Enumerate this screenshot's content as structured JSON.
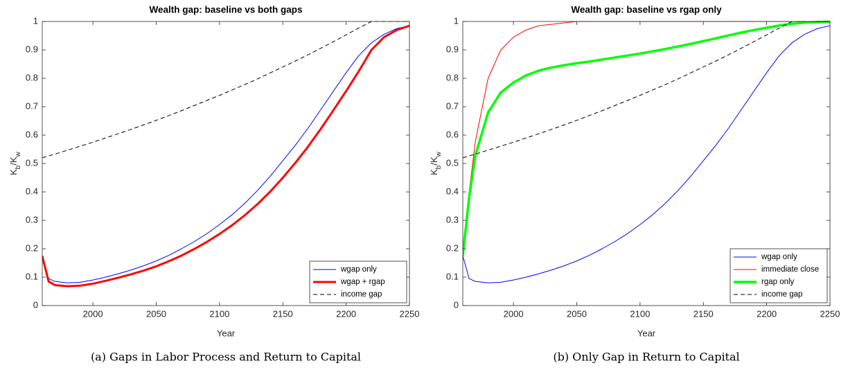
{
  "chart_data": [
    {
      "type": "line",
      "title": "Wealth gap: baseline vs both gaps",
      "xlabel": "Year",
      "ylabel": [
        "K",
        "b",
        "/K",
        "w"
      ],
      "caption": "(a) Gaps in Labor Process and Return to Capital",
      "x": [
        1960,
        1965,
        1970,
        1980,
        1990,
        2000,
        2010,
        2020,
        2030,
        2040,
        2050,
        2060,
        2070,
        2080,
        2090,
        2100,
        2110,
        2120,
        2130,
        2140,
        2150,
        2160,
        2170,
        2180,
        2190,
        2200,
        2210,
        2220,
        2230,
        2240,
        2250
      ],
      "xlim": [
        1960,
        2250
      ],
      "xticks": [
        2000,
        2050,
        2100,
        2150,
        2200,
        2250
      ],
      "ylim": [
        0,
        1
      ],
      "yticks": [
        0,
        0.1,
        0.2,
        0.3,
        0.4,
        0.5,
        0.6,
        0.7,
        0.8,
        0.9,
        1
      ],
      "legend": "bottom-right",
      "series": [
        {
          "name": "wgap only",
          "color": "#0000ff",
          "width": 1,
          "dash": "solid",
          "values": [
            0.175,
            0.095,
            0.085,
            0.08,
            0.082,
            0.09,
            0.1,
            0.112,
            0.125,
            0.14,
            0.157,
            0.177,
            0.2,
            0.225,
            0.253,
            0.285,
            0.32,
            0.36,
            0.405,
            0.455,
            0.51,
            0.565,
            0.625,
            0.69,
            0.755,
            0.82,
            0.88,
            0.925,
            0.955,
            0.975,
            0.985
          ]
        },
        {
          "name": "wgap + rgap",
          "color": "#ff0000",
          "width": 3,
          "dash": "solid",
          "values": [
            0.175,
            0.085,
            0.072,
            0.068,
            0.07,
            0.077,
            0.087,
            0.098,
            0.11,
            0.123,
            0.138,
            0.156,
            0.176,
            0.199,
            0.224,
            0.252,
            0.283,
            0.318,
            0.357,
            0.401,
            0.45,
            0.503,
            0.56,
            0.622,
            0.688,
            0.755,
            0.825,
            0.9,
            0.945,
            0.97,
            0.985
          ]
        },
        {
          "name": "income gap",
          "color": "#000000",
          "width": 1,
          "dash": "dashed",
          "values": [
            0.52,
            0.527,
            0.533,
            0.547,
            0.561,
            0.575,
            0.59,
            0.605,
            0.62,
            0.636,
            0.652,
            0.669,
            0.686,
            0.704,
            0.722,
            0.74,
            0.759,
            0.778,
            0.798,
            0.819,
            0.84,
            0.861,
            0.883,
            0.906,
            0.929,
            0.953,
            0.977,
            1,
            1,
            1,
            1
          ]
        }
      ]
    },
    {
      "type": "line",
      "title": "Wealth gap: baseline vs rgap only",
      "xlabel": "Year",
      "ylabel": [
        "K",
        "b",
        "/K",
        "w"
      ],
      "caption": "(b) Only Gap in Return to Capital",
      "x": [
        1960,
        1965,
        1970,
        1980,
        1990,
        2000,
        2010,
        2020,
        2030,
        2040,
        2050,
        2060,
        2070,
        2080,
        2090,
        2100,
        2110,
        2120,
        2130,
        2140,
        2150,
        2160,
        2170,
        2180,
        2190,
        2200,
        2210,
        2220,
        2230,
        2240,
        2250
      ],
      "xlim": [
        1960,
        2250
      ],
      "xticks": [
        2000,
        2050,
        2100,
        2150,
        2200,
        2250
      ],
      "ylim": [
        0,
        1
      ],
      "yticks": [
        0,
        0.1,
        0.2,
        0.3,
        0.4,
        0.5,
        0.6,
        0.7,
        0.8,
        0.9,
        1
      ],
      "legend": "bottom-right",
      "series": [
        {
          "name": "wgap only",
          "color": "#0000ff",
          "width": 1,
          "dash": "solid",
          "values": [
            0.175,
            0.095,
            0.085,
            0.08,
            0.082,
            0.09,
            0.1,
            0.112,
            0.125,
            0.14,
            0.157,
            0.177,
            0.2,
            0.225,
            0.253,
            0.285,
            0.32,
            0.36,
            0.405,
            0.455,
            0.51,
            0.565,
            0.625,
            0.69,
            0.755,
            0.82,
            0.88,
            0.925,
            0.955,
            0.975,
            0.985
          ]
        },
        {
          "name": "immediate close",
          "color": "#ff0000",
          "width": 1,
          "dash": "solid",
          "values": [
            0.175,
            0.4,
            0.58,
            0.8,
            0.9,
            0.945,
            0.97,
            0.985,
            0.99,
            0.995,
            1,
            1,
            1,
            1,
            1,
            1,
            1,
            1,
            1,
            1,
            1,
            1,
            1,
            1,
            1,
            1,
            1,
            1,
            1,
            1,
            1
          ]
        },
        {
          "name": "rgap only",
          "color": "#00ff00",
          "width": 3.5,
          "dash": "solid",
          "values": [
            0.175,
            0.38,
            0.53,
            0.68,
            0.75,
            0.785,
            0.81,
            0.827,
            0.838,
            0.846,
            0.853,
            0.859,
            0.866,
            0.873,
            0.88,
            0.887,
            0.895,
            0.903,
            0.912,
            0.921,
            0.931,
            0.941,
            0.951,
            0.961,
            0.97,
            0.978,
            0.986,
            0.992,
            0.996,
            0.998,
            0.999
          ]
        },
        {
          "name": "income gap",
          "color": "#000000",
          "width": 1,
          "dash": "dashed",
          "values": [
            0.52,
            0.527,
            0.533,
            0.547,
            0.561,
            0.575,
            0.59,
            0.605,
            0.62,
            0.636,
            0.652,
            0.669,
            0.686,
            0.704,
            0.722,
            0.74,
            0.759,
            0.778,
            0.798,
            0.819,
            0.84,
            0.861,
            0.883,
            0.906,
            0.929,
            0.953,
            0.977,
            1,
            1,
            1,
            1
          ]
        }
      ]
    }
  ]
}
